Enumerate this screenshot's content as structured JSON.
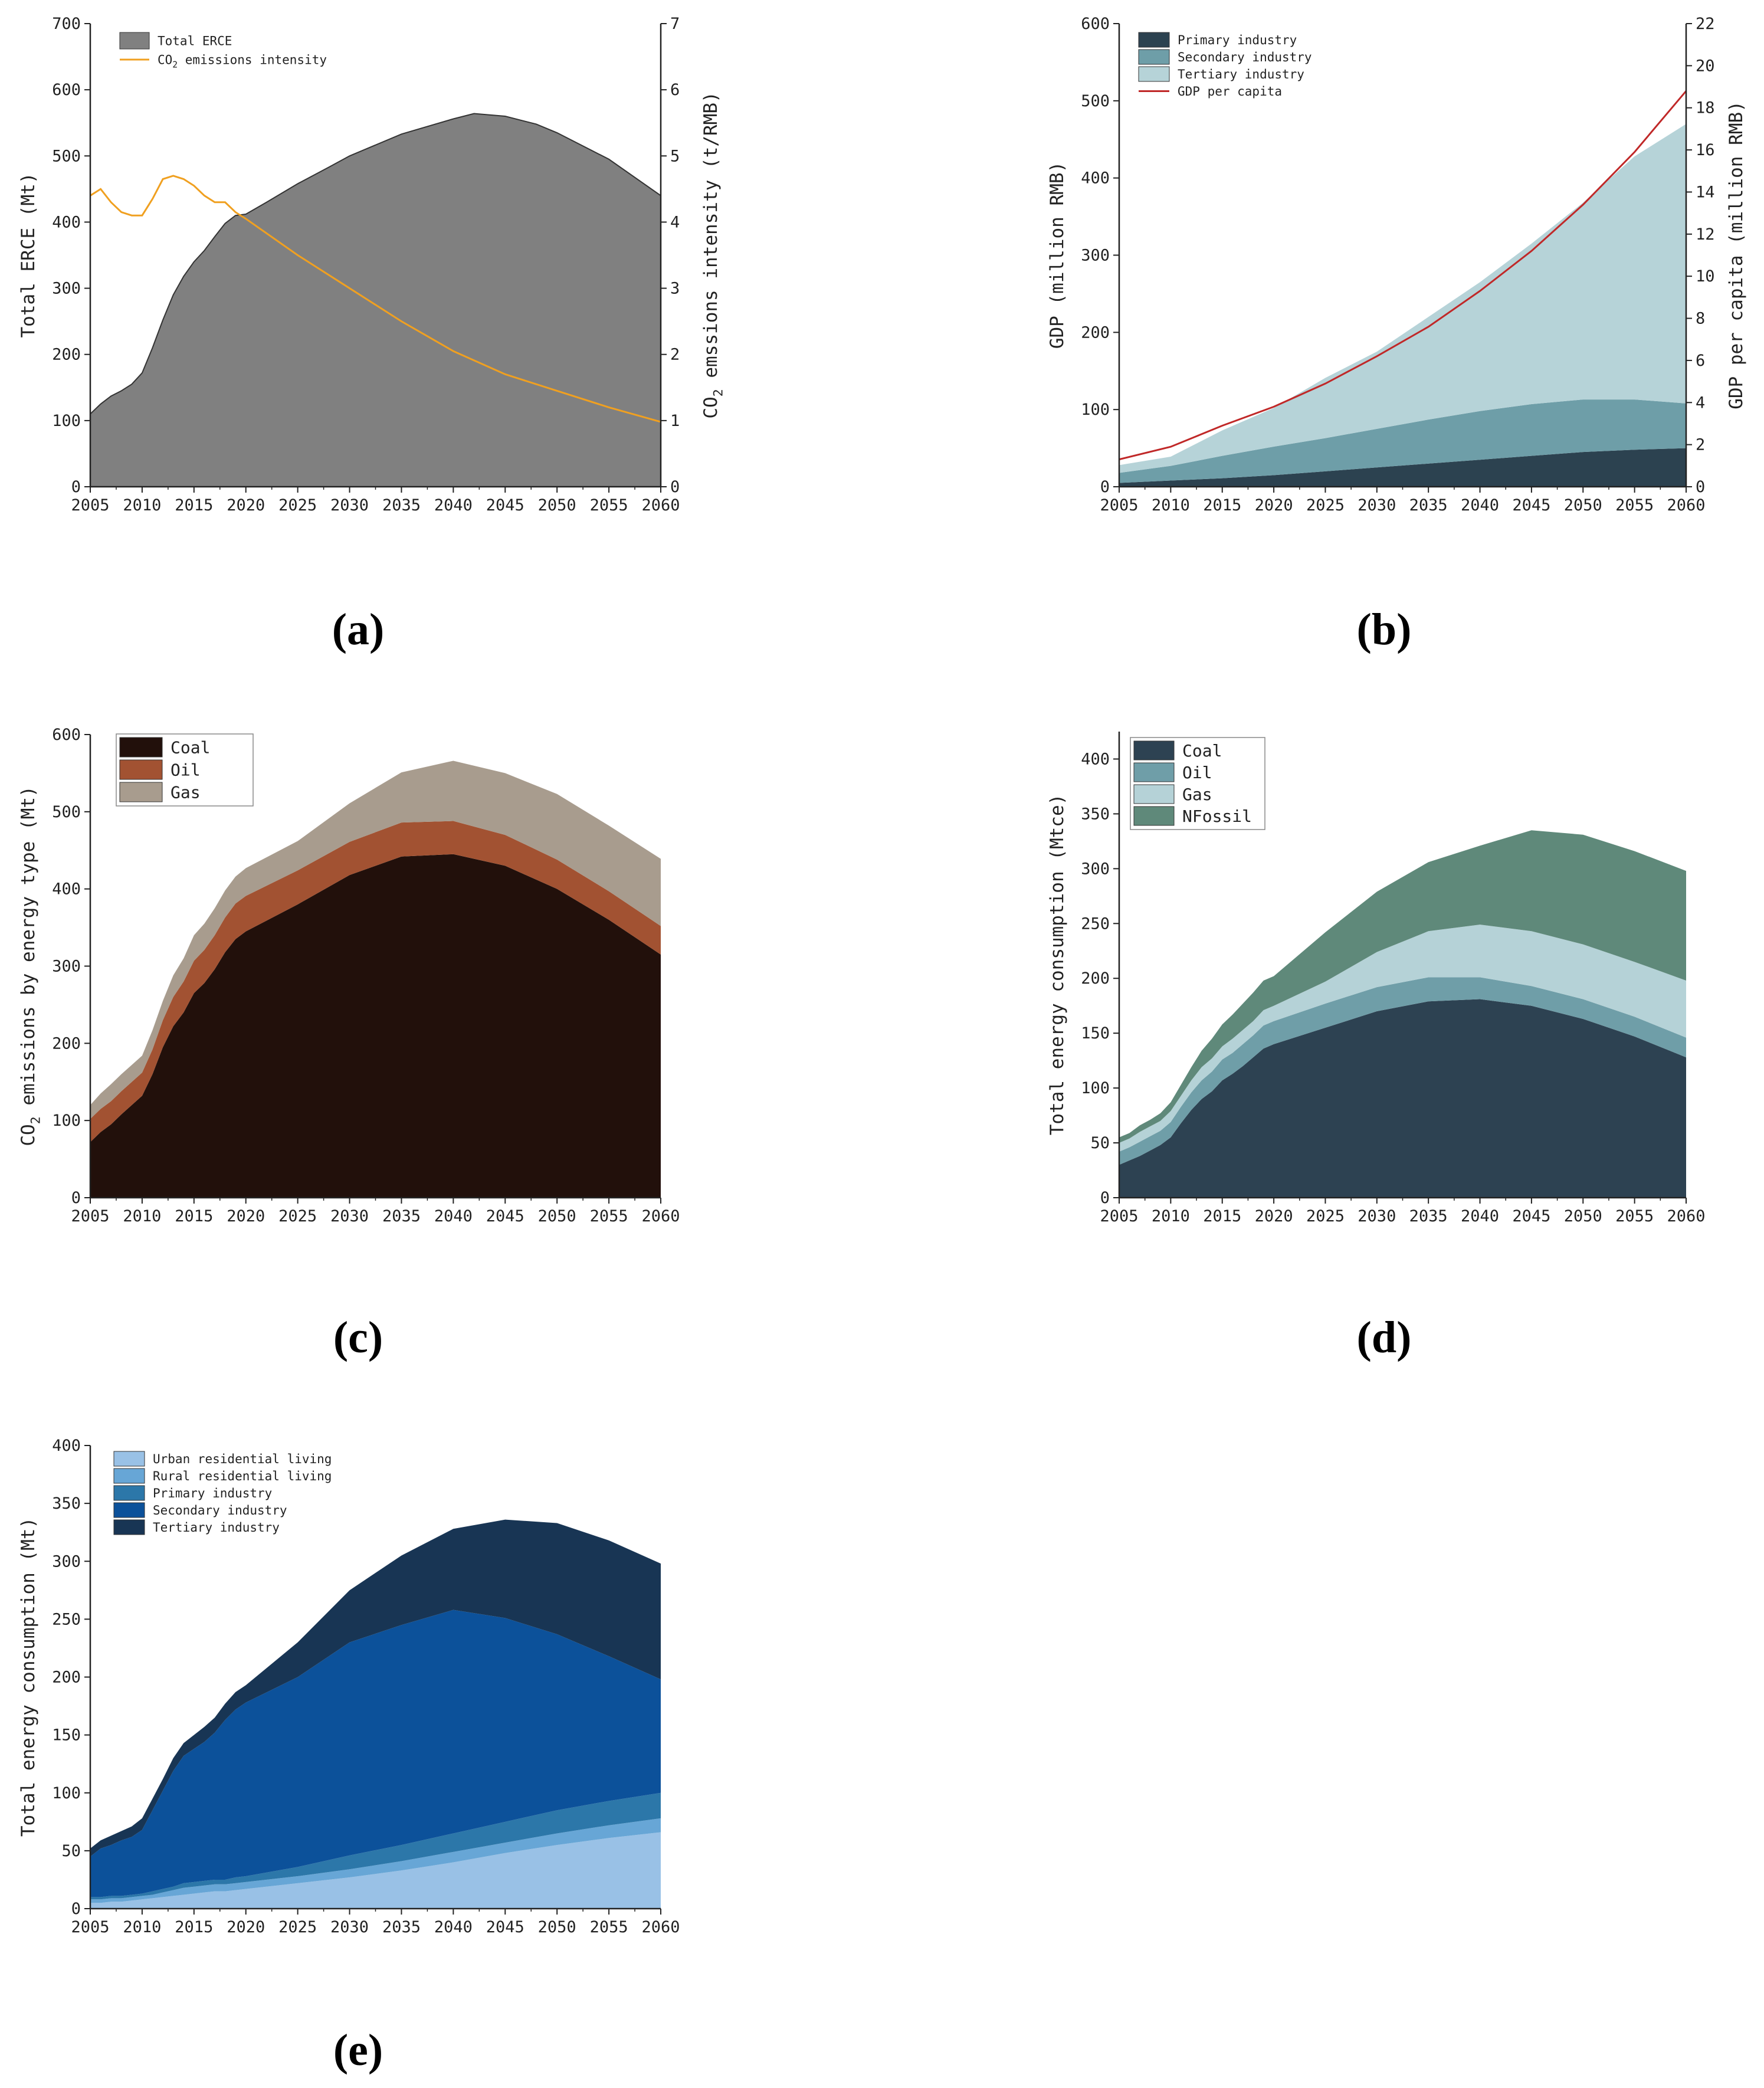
{
  "colors": {
    "a_total": "#808080",
    "a_line": "#f0a020",
    "b_primary": "#2c4250",
    "b_secondary": "#6e9ea8",
    "b_tertiary": "#b6d3d8",
    "b_line": "#c02828",
    "c_coal": "#22100b",
    "c_oil": "#a25232",
    "c_gas": "#a89c8e",
    "d_coal": "#2d4252",
    "d_oil": "#6f9ea8",
    "d_gas": "#b5d2d7",
    "d_nfossil": "#5f897a",
    "e_urban": "#99c1e6",
    "e_rural": "#67a6d6",
    "e_primary": "#2c77a9",
    "e_secondary": "#0c519a",
    "e_tertiary": "#183554"
  },
  "chart_data": [
    {
      "id": "a",
      "panel_label": "(a)",
      "type": "area",
      "xlabel": "",
      "ylabel": "Total ERCE (Mt)",
      "y2label": "CO2 emssions intensity (t/RMB)",
      "x": [
        2005,
        2006,
        2007,
        2008,
        2009,
        2010,
        2011,
        2012,
        2013,
        2014,
        2015,
        2016,
        2017,
        2018,
        2019,
        2020,
        2022,
        2025,
        2028,
        2030,
        2035,
        2040,
        2042,
        2045,
        2048,
        2050,
        2055,
        2060
      ],
      "xlim": [
        2005,
        2060
      ],
      "xticks": [
        2005,
        2010,
        2015,
        2020,
        2025,
        2030,
        2035,
        2040,
        2045,
        2050,
        2055,
        2060
      ],
      "ylim": [
        0,
        700
      ],
      "yticks": [
        0,
        100,
        200,
        300,
        400,
        500,
        600,
        700
      ],
      "y2lim": [
        0,
        7
      ],
      "y2ticks": [
        0,
        1,
        2,
        3,
        4,
        5,
        6,
        7
      ],
      "legend": [
        "Total ERCE",
        "CO2 emissions intensity"
      ],
      "series": [
        {
          "name": "Total ERCE",
          "kind": "area",
          "color_key": "a_total",
          "values": [
            110,
            125,
            137,
            145,
            155,
            172,
            210,
            252,
            290,
            318,
            340,
            357,
            378,
            398,
            410,
            412,
            430,
            458,
            483,
            500,
            533,
            556,
            564,
            560,
            548,
            535,
            495,
            440
          ]
        }
      ],
      "series_y2": [
        {
          "name": "CO2 emissions intensity",
          "kind": "line",
          "color_key": "a_line",
          "x": [
            2005,
            2006,
            2007,
            2008,
            2009,
            2010,
            2011,
            2012,
            2013,
            2014,
            2015,
            2016,
            2017,
            2018,
            2019,
            2020,
            2025,
            2030,
            2035,
            2040,
            2045,
            2050,
            2055,
            2060
          ],
          "values": [
            4.4,
            4.5,
            4.3,
            4.15,
            4.1,
            4.1,
            4.35,
            4.65,
            4.7,
            4.65,
            4.55,
            4.4,
            4.3,
            4.3,
            4.15,
            4.05,
            3.5,
            3.0,
            2.5,
            2.05,
            1.7,
            1.45,
            1.2,
            0.98
          ]
        }
      ]
    },
    {
      "id": "b",
      "panel_label": "(b)",
      "type": "area",
      "stacked": true,
      "xlabel": "",
      "ylabel": "GDP (million RMB)",
      "y2label": "GDP per capita (million RMB)",
      "x": [
        2005,
        2010,
        2015,
        2020,
        2025,
        2030,
        2035,
        2040,
        2045,
        2050,
        2055,
        2060
      ],
      "xlim": [
        2005,
        2060
      ],
      "xticks": [
        2005,
        2010,
        2015,
        2020,
        2025,
        2030,
        2035,
        2040,
        2045,
        2050,
        2055,
        2060
      ],
      "ylim": [
        0,
        600
      ],
      "yticks": [
        0,
        100,
        200,
        300,
        400,
        500,
        600
      ],
      "y2lim": [
        0,
        22
      ],
      "y2ticks": [
        0,
        2,
        4,
        6,
        8,
        10,
        12,
        14,
        16,
        18,
        20,
        22
      ],
      "legend": [
        "Primary industry",
        "Secondary industry",
        "Tertiary industry",
        "GDP per capita"
      ],
      "series": [
        {
          "name": "Primary industry",
          "kind": "stack",
          "color_key": "b_primary",
          "values": [
            5,
            8,
            11,
            15,
            20,
            25,
            30,
            35,
            40,
            45,
            48,
            50
          ]
        },
        {
          "name": "Secondary industry",
          "kind": "stack",
          "color_key": "b_secondary",
          "values": [
            13,
            19,
            29,
            37,
            43,
            50,
            57,
            63,
            67,
            68,
            65,
            58
          ]
        },
        {
          "name": "Tertiary industry",
          "kind": "stack",
          "color_key": "b_tertiary",
          "values": [
            10,
            12,
            33,
            50,
            78,
            100,
            133,
            167,
            208,
            255,
            315,
            362
          ]
        }
      ],
      "series_y2": [
        {
          "name": "GDP per capita",
          "kind": "line",
          "color_key": "b_line",
          "x": [
            2005,
            2010,
            2015,
            2020,
            2025,
            2030,
            2035,
            2040,
            2045,
            2050,
            2055,
            2060
          ],
          "values": [
            1.3,
            1.9,
            2.9,
            3.8,
            4.9,
            6.2,
            7.6,
            9.3,
            11.2,
            13.4,
            15.9,
            18.8
          ]
        }
      ]
    },
    {
      "id": "c",
      "panel_label": "(c)",
      "type": "area",
      "stacked": true,
      "xlabel": "",
      "ylabel": "CO2 emissions by energy type (Mt)",
      "x": [
        2005,
        2006,
        2007,
        2008,
        2009,
        2010,
        2011,
        2012,
        2013,
        2014,
        2015,
        2016,
        2017,
        2018,
        2019,
        2020,
        2025,
        2030,
        2035,
        2040,
        2045,
        2050,
        2055,
        2060
      ],
      "xlim": [
        2005,
        2060
      ],
      "xticks": [
        2005,
        2010,
        2015,
        2020,
        2025,
        2030,
        2035,
        2040,
        2045,
        2050,
        2055,
        2060
      ],
      "ylim": [
        0,
        600
      ],
      "yticks": [
        0,
        100,
        200,
        300,
        400,
        500,
        600
      ],
      "legend": [
        "Coal",
        "Oil",
        "Gas"
      ],
      "series": [
        {
          "name": "Coal",
          "kind": "stack",
          "color_key": "c_coal",
          "values": [
            72,
            85,
            95,
            108,
            120,
            132,
            160,
            195,
            222,
            240,
            265,
            278,
            296,
            318,
            335,
            345,
            380,
            418,
            442,
            445,
            430,
            400,
            360,
            315
          ]
        },
        {
          "name": "Oil",
          "kind": "stack",
          "color_key": "c_oil",
          "values": [
            30,
            30,
            30,
            30,
            30,
            30,
            32,
            35,
            38,
            40,
            42,
            43,
            44,
            45,
            46,
            46,
            44,
            43,
            44,
            43,
            40,
            38,
            37,
            37
          ]
        },
        {
          "name": "Gas",
          "kind": "stack",
          "color_key": "c_gas",
          "values": [
            18,
            20,
            22,
            22,
            22,
            22,
            25,
            25,
            28,
            30,
            33,
            34,
            35,
            35,
            35,
            36,
            38,
            50,
            65,
            78,
            80,
            85,
            85,
            87
          ]
        }
      ]
    },
    {
      "id": "d",
      "panel_label": "(d)",
      "type": "area",
      "stacked": true,
      "xlabel": "",
      "ylabel": "Total energy consumption (Mtce)",
      "x": [
        2005,
        2006,
        2007,
        2008,
        2009,
        2010,
        2011,
        2012,
        2013,
        2014,
        2015,
        2016,
        2017,
        2018,
        2019,
        2020,
        2025,
        2030,
        2035,
        2040,
        2045,
        2050,
        2055,
        2060
      ],
      "xlim": [
        2005,
        2060
      ],
      "xticks": [
        2005,
        2010,
        2015,
        2020,
        2025,
        2030,
        2035,
        2040,
        2045,
        2050,
        2055,
        2060
      ],
      "ylim": [
        0,
        425
      ],
      "yticks": [
        0,
        50,
        100,
        150,
        200,
        250,
        300,
        350,
        400
      ],
      "legend": [
        "Coal",
        "Oil",
        "Gas",
        "NFossil"
      ],
      "series": [
        {
          "name": "Coal",
          "kind": "stack",
          "color_key": "d_coal",
          "values": [
            30,
            34,
            38,
            43,
            48,
            55,
            68,
            80,
            90,
            97,
            107,
            113,
            120,
            128,
            136,
            140,
            155,
            170,
            179,
            181,
            175,
            163,
            147,
            128
          ]
        },
        {
          "name": "Oil",
          "kind": "stack",
          "color_key": "d_oil",
          "values": [
            12,
            12,
            13,
            13,
            13,
            14,
            15,
            16,
            17,
            18,
            19,
            19,
            20,
            20,
            21,
            21,
            22,
            22,
            22,
            20,
            18,
            18,
            18,
            18
          ]
        },
        {
          "name": "Gas",
          "kind": "stack",
          "color_key": "d_gas",
          "values": [
            8,
            8,
            9,
            9,
            9,
            10,
            10,
            11,
            12,
            12,
            12,
            13,
            13,
            13,
            14,
            14,
            20,
            32,
            42,
            48,
            50,
            50,
            50,
            52
          ]
        },
        {
          "name": "NFossil",
          "kind": "stack",
          "color_key": "d_nfossil",
          "values": [
            5,
            5,
            6,
            6,
            7,
            8,
            10,
            12,
            15,
            18,
            20,
            22,
            24,
            26,
            27,
            27,
            45,
            55,
            63,
            72,
            92,
            100,
            101,
            100
          ]
        }
      ]
    },
    {
      "id": "e",
      "panel_label": "(e)",
      "type": "area",
      "stacked": true,
      "xlabel": "",
      "ylabel": "Total energy consumption (Mt)",
      "x": [
        2005,
        2006,
        2007,
        2008,
        2009,
        2010,
        2011,
        2012,
        2013,
        2014,
        2015,
        2016,
        2017,
        2018,
        2019,
        2020,
        2025,
        2030,
        2035,
        2040,
        2045,
        2050,
        2055,
        2060
      ],
      "xlim": [
        2005,
        2060
      ],
      "xticks": [
        2005,
        2010,
        2015,
        2020,
        2025,
        2030,
        2035,
        2040,
        2045,
        2050,
        2055,
        2060
      ],
      "ylim": [
        0,
        400
      ],
      "yticks": [
        0,
        50,
        100,
        150,
        200,
        250,
        300,
        350,
        400
      ],
      "legend": [
        "Urban residential living",
        "Rural residential living",
        "Primary industry",
        "Secondary industry",
        "Tertiary industry"
      ],
      "series": [
        {
          "name": "Urban residential living",
          "kind": "stack",
          "color_key": "e_urban",
          "values": [
            5,
            5,
            6,
            6,
            7,
            8,
            9,
            10,
            11,
            12,
            13,
            14,
            15,
            15,
            16,
            17,
            22,
            27,
            33,
            40,
            48,
            55,
            61,
            66
          ]
        },
        {
          "name": "Rural residential living",
          "kind": "stack",
          "color_key": "e_rural",
          "values": [
            3,
            3,
            3,
            3,
            3,
            3,
            3,
            4,
            5,
            6,
            6,
            6,
            6,
            6,
            6,
            6,
            6,
            7,
            8,
            9,
            9,
            10,
            11,
            12
          ]
        },
        {
          "name": "Primary industry",
          "kind": "stack",
          "color_key": "e_primary",
          "values": [
            2,
            2,
            2,
            2,
            2,
            2,
            3,
            3,
            3,
            4,
            4,
            4,
            4,
            4,
            5,
            5,
            8,
            12,
            14,
            16,
            18,
            20,
            21,
            22
          ]
        },
        {
          "name": "Secondary industry",
          "kind": "stack",
          "color_key": "e_secondary",
          "values": [
            35,
            42,
            44,
            48,
            50,
            55,
            70,
            85,
            100,
            110,
            115,
            120,
            127,
            138,
            145,
            150,
            164,
            184,
            190,
            193,
            176,
            152,
            125,
            98
          ]
        },
        {
          "name": "Tertiary industry",
          "kind": "stack",
          "color_key": "e_tertiary",
          "values": [
            7,
            7,
            8,
            8,
            9,
            10,
            10,
            10,
            11,
            11,
            12,
            13,
            13,
            14,
            15,
            15,
            30,
            45,
            60,
            70,
            85,
            96,
            100,
            100
          ]
        }
      ]
    }
  ]
}
